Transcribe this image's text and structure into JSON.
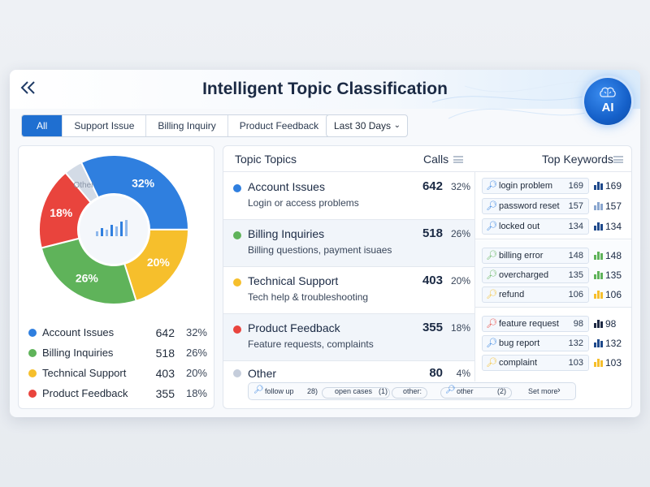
{
  "header": {
    "title": "Intelligent Topic Classification",
    "back_icon": "double-chevron-left-icon",
    "ai_label": "AI"
  },
  "filters": {
    "tabs": [
      {
        "label": "All",
        "active": true
      },
      {
        "label": "Support Issue",
        "active": false
      },
      {
        "label": "Billing Inquiry",
        "active": false
      },
      {
        "label": "Product Feedback",
        "active": false
      }
    ],
    "date_range": "Last 30 Days"
  },
  "chart_data": {
    "type": "pie",
    "categories": [
      "Account Issues",
      "Billing Inquiries",
      "Technical Support",
      "Product Feedback",
      "Other"
    ],
    "values": [
      642,
      518,
      403,
      355,
      80
    ],
    "percent_labels": [
      "32%",
      "26%",
      "20%",
      "18%",
      "Other"
    ],
    "colors": [
      "#2f7fdf",
      "#5fb35a",
      "#f6bf2c",
      "#e9443d",
      "#d3dbe6"
    ]
  },
  "legend": [
    {
      "name": "Account Issues",
      "count": "642",
      "pct": "32%",
      "color": "#2f7fdf"
    },
    {
      "name": "Billing Inquiries",
      "count": "518",
      "pct": "26%",
      "color": "#5fb35a"
    },
    {
      "name": "Technical Support",
      "count": "403",
      "pct": "20%",
      "color": "#f6bf2c"
    },
    {
      "name": "Product Feedback",
      "count": "355",
      "pct": "18%",
      "color": "#e9443d"
    }
  ],
  "table": {
    "col_topic": "Topic Topics",
    "col_calls": "Calls",
    "col_keywords": "Top Keywords",
    "rows": [
      {
        "name": "Account Issues",
        "desc": "Login or access problems",
        "count": "642",
        "pct": "32%",
        "color": "#2f7fdf"
      },
      {
        "name": "Billing Inquiries",
        "desc": "Billing questions, payment isuaes",
        "count": "518",
        "pct": "26%",
        "color": "#5fb35a"
      },
      {
        "name": "Technical Support",
        "desc": "Tech help & troubleshooting",
        "count": "403",
        "pct": "20%",
        "color": "#f6bf2c"
      },
      {
        "name": "Product Feedback",
        "desc": "Feature requests, complaints",
        "count": "355",
        "pct": "18%",
        "color": "#e9443d"
      },
      {
        "name": "Other",
        "desc": "",
        "count": "80",
        "pct": "4%",
        "color": "#c5cddb"
      }
    ]
  },
  "keywords": [
    [
      {
        "label": "login problem",
        "count": "169",
        "bar": "169",
        "color": "#2f7fdf",
        "bar_color": "#1f4a8c"
      },
      {
        "label": "password reset",
        "count": "157",
        "bar": "157",
        "color": "#2f7fdf",
        "bar_color": "#8aa6cf"
      },
      {
        "label": "locked out",
        "count": "134",
        "bar": "134",
        "color": "#2f7fdf",
        "bar_color": "#1f4a8c"
      }
    ],
    [
      {
        "label": "billing error",
        "count": "148",
        "bar": "148",
        "color": "#5fb35a",
        "bar_color": "#5fb35a"
      },
      {
        "label": "overcharged",
        "count": "135",
        "bar": "135",
        "color": "#5fb35a",
        "bar_color": "#5fb35a"
      },
      {
        "label": "refund",
        "count": "106",
        "bar": "106",
        "color": "#f6bf2c",
        "bar_color": "#f6bf2c"
      }
    ],
    [
      {
        "label": "feature request",
        "count": "98",
        "bar": "98",
        "color": "#e9443d",
        "bar_color": "#1f2a44"
      },
      {
        "label": "bug report",
        "count": "132",
        "bar": "132",
        "color": "#2f7fdf",
        "bar_color": "#1f4a8c"
      },
      {
        "label": "complaint",
        "count": "103",
        "bar": "103",
        "color": "#f6bf2c",
        "bar_color": "#f6bf2c"
      }
    ]
  ],
  "bottom": {
    "follow_up": "follow up",
    "follow_up_count": "28)",
    "open_cases": "open cases",
    "open_cases_count": "(1)",
    "other_chip": "other:",
    "other_search": "other",
    "other_search_count": "(2)",
    "see_more": "Set more"
  }
}
